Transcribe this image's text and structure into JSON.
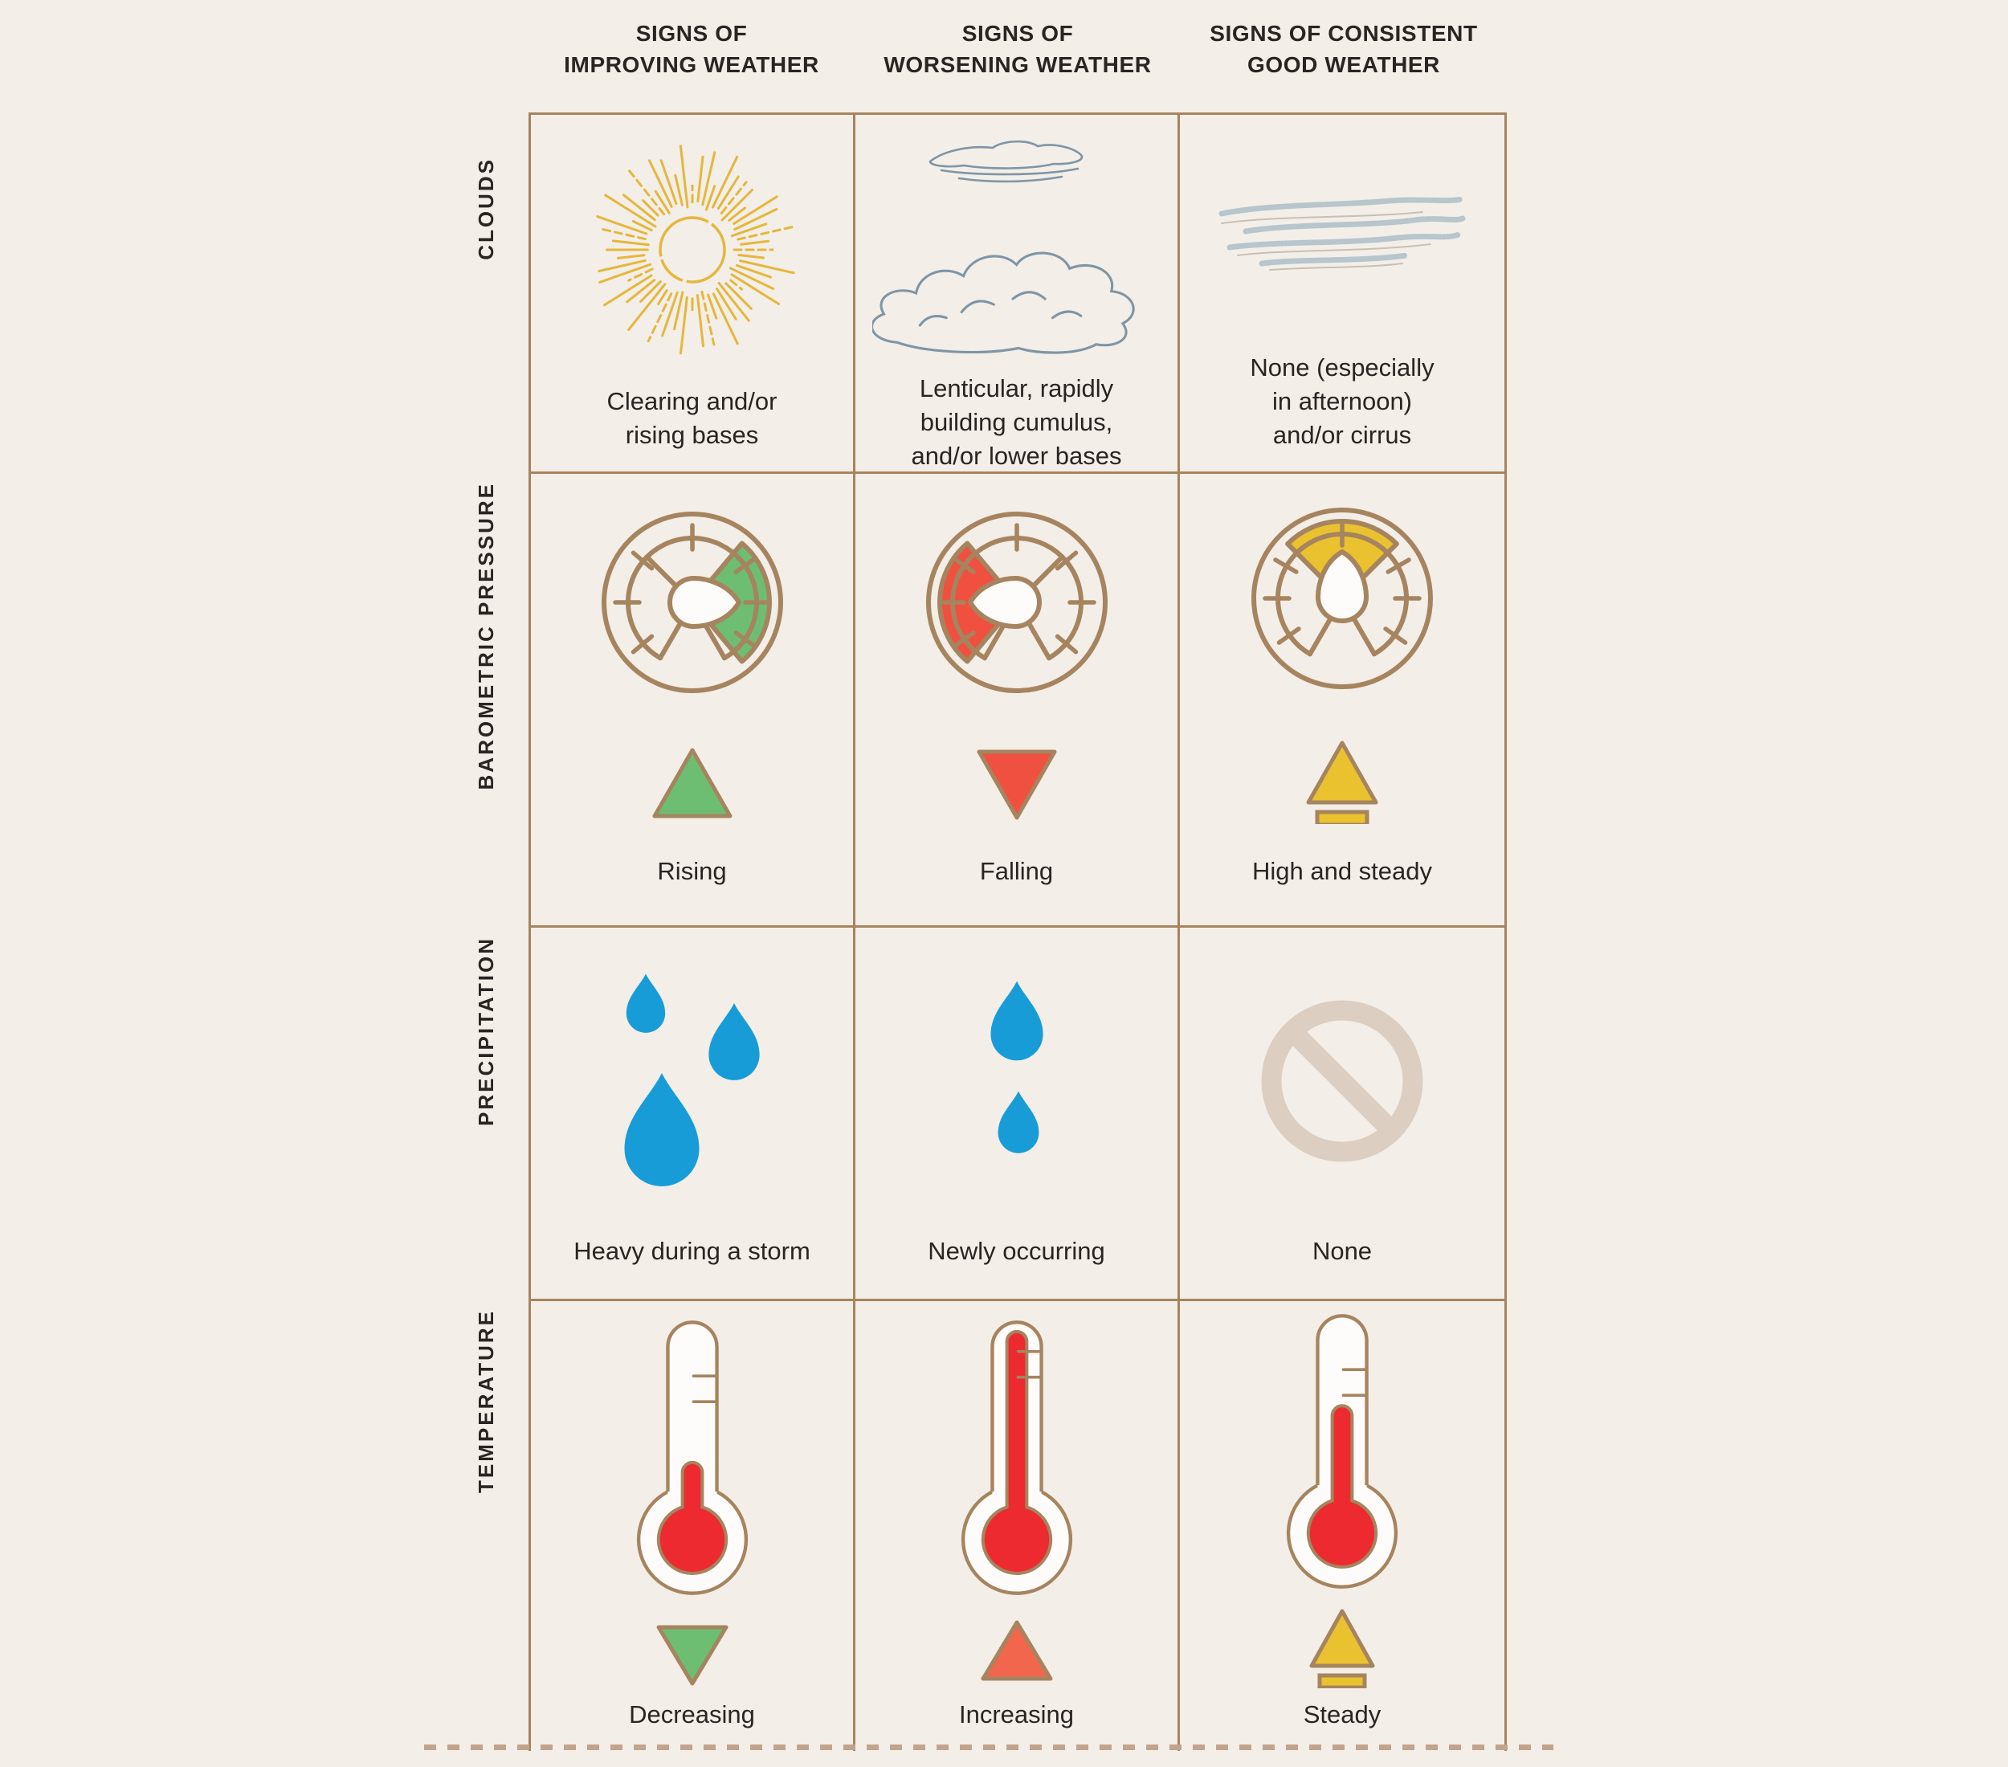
{
  "palette": {
    "background": "#f3eee8",
    "line_brown": "#a6845f",
    "dash_tan": "#c2a38d",
    "text_dark": "#2b2423",
    "sun_yellow": "#e4b73d",
    "cloud_gray_blue": "#7e95a5",
    "cirrus_blue": "#b7c5cc",
    "cirrus_tan": "#c9c0b2",
    "green": "#6dbe73",
    "red": "#f0503f",
    "gauge_yellow": "#eac22f",
    "drop_blue": "#189cd8",
    "thermometer_red": "#ec2a30",
    "orange_red": "#f2664e",
    "prohibition_tan": "#dccfc1",
    "icon_white": "#fdfcfa"
  },
  "columns": [
    {
      "id": "improving",
      "header_line1": "SIGNS OF",
      "header_line2": "IMPROVING WEATHER"
    },
    {
      "id": "worsening",
      "header_line1": "SIGNS OF",
      "header_line2": "WORSENING WEATHER"
    },
    {
      "id": "good",
      "header_line1": "SIGNS OF CONSISTENT",
      "header_line2": "GOOD WEATHER"
    }
  ],
  "row_labels": [
    "CLOUDS",
    "BAROMETRIC PRESSURE",
    "PRECIPITATION",
    "TEMPERATURE"
  ],
  "cells": {
    "clouds": [
      {
        "icon": "sun-sketch",
        "caption": "Clearing and/or rising bases",
        "lines": [
          "Clearing and/or",
          "rising bases"
        ]
      },
      {
        "icon": "lenticular-cumulus-clouds-sketch",
        "caption": "Lenticular, rapidly building cumulus, and/or lower bases",
        "lines": [
          "Lenticular, rapidly",
          "building cumulus,",
          "and/or lower bases"
        ]
      },
      {
        "icon": "cirrus-clouds-sketch",
        "caption": "None (especially in afternoon) and/or cirrus",
        "lines": [
          "None (especially",
          "in afternoon)",
          "and/or cirrus"
        ]
      }
    ],
    "pressure": [
      {
        "icon": "barometer-gauge-needle-right-green",
        "trend_icon": "triangle-up-green",
        "caption": "Rising"
      },
      {
        "icon": "barometer-gauge-needle-left-red",
        "trend_icon": "triangle-down-red",
        "caption": "Falling"
      },
      {
        "icon": "barometer-gauge-needle-up-yellow",
        "trend_icon": "triangle-up-over-bar-yellow",
        "caption": "High and steady"
      }
    ],
    "precipitation": [
      {
        "icon": "three-raindrops",
        "caption": "Heavy during a storm"
      },
      {
        "icon": "two-raindrops",
        "caption": "Newly occurring"
      },
      {
        "icon": "no-symbol",
        "caption": "None"
      }
    ],
    "temperature": [
      {
        "icon": "thermometer-low-level",
        "trend_icon": "triangle-down-green",
        "caption": "Decreasing"
      },
      {
        "icon": "thermometer-high-level",
        "trend_icon": "triangle-up-orange",
        "caption": "Increasing"
      },
      {
        "icon": "thermometer-medium-level",
        "trend_icon": "triangle-up-over-bar-yellow",
        "caption": "Steady"
      }
    ]
  }
}
